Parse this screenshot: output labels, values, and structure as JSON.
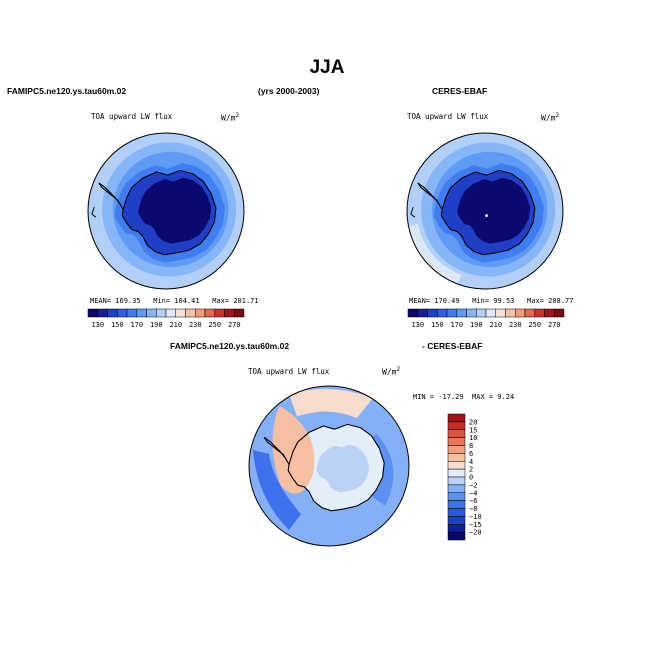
{
  "figure": {
    "title": "JJA",
    "left_case": "FAMIPC5.ne120.ys.tau60m.02",
    "period": "(yrs 2000-2003)",
    "right_case": "CERES-EBAF",
    "diff_case_a": "FAMIPC5.ne120.ys.tau60m.02",
    "diff_case_b": "- CERES-EBAF"
  },
  "chart_data": [
    {
      "type": "heatmap",
      "panel": "model",
      "title": "TOA upward LW flux",
      "units": "W/m",
      "units_exp": "2",
      "projection": "south polar stereographic",
      "stats": {
        "mean": "MEAN= 169.35",
        "min": "Min= 104.41",
        "max": "Max= 201.71"
      },
      "levels": [
        130,
        140,
        150,
        160,
        170,
        180,
        190,
        200,
        210,
        220,
        230,
        240,
        250,
        260,
        270
      ],
      "tick_labels": [
        "130",
        "150",
        "170",
        "190",
        "210",
        "230",
        "250",
        "270"
      ],
      "colors": [
        "#0a0a6e",
        "#1a1a9c",
        "#1e3fc6",
        "#2b5fe0",
        "#3f7ef0",
        "#5f9af5",
        "#86b6f7",
        "#b2d0f7",
        "#dbe8f5",
        "#f7e2d6",
        "#f7c3a6",
        "#f49a78",
        "#e36a4a",
        "#c7352a",
        "#a3131a",
        "#7a0b10"
      ],
      "field": {
        "ocean_outer": 190,
        "ocean_mid": 180,
        "ocean_inner": 170,
        "coast": 160,
        "interior": 140,
        "plateau": 120,
        "outer_ring_value": 200
      }
    },
    {
      "type": "heatmap",
      "panel": "obs",
      "title": "TOA upward LW flux",
      "units": "W/m",
      "units_exp": "2",
      "projection": "south polar stereographic",
      "stats": {
        "mean": "MEAN= 170.49",
        "min": "Min=  99.53",
        "max": "Max= 208.77"
      },
      "levels": [
        130,
        140,
        150,
        160,
        170,
        180,
        190,
        200,
        210,
        220,
        230,
        240,
        250,
        260,
        270
      ],
      "tick_labels": [
        "130",
        "150",
        "170",
        "190",
        "210",
        "230",
        "250",
        "270"
      ],
      "colors": [
        "#0a0a6e",
        "#1a1a9c",
        "#1e3fc6",
        "#2b5fe0",
        "#3f7ef0",
        "#5f9af5",
        "#86b6f7",
        "#b2d0f7",
        "#dbe8f5",
        "#f7e2d6",
        "#f7c3a6",
        "#f49a78",
        "#e36a4a",
        "#c7352a",
        "#a3131a",
        "#7a0b10"
      ],
      "field": {
        "ocean_outer": 190,
        "ocean_mid": 180,
        "ocean_inner": 170,
        "coast": 160,
        "interior": 140,
        "plateau": 120,
        "outer_ring_value": 205
      }
    },
    {
      "type": "heatmap",
      "panel": "difference",
      "title": "TOA upward LW flux",
      "units": "W/m",
      "units_exp": "2",
      "projection": "south polar stereographic",
      "stats": {
        "min": "MIN = -17.29",
        "max": "MAX =   9.24"
      },
      "levels": [
        -20,
        -15,
        -10,
        -8,
        -6,
        -4,
        -2,
        0,
        2,
        4,
        6,
        8,
        10,
        15,
        20
      ],
      "tick_labels": [
        "20",
        "15",
        "10",
        "8",
        "6",
        "4",
        "2",
        "0",
        "−2",
        "−4",
        "−6",
        "−8",
        "−10",
        "−15",
        "−20"
      ],
      "colors": [
        "#08086a",
        "#0c1f9a",
        "#1d3ec8",
        "#2a58e0",
        "#3d72ec",
        "#5c90f2",
        "#86b0f5",
        "#b9d2f6",
        "#e4eef8",
        "#f8dccd",
        "#f6bfa2",
        "#f39d7b",
        "#ec7754",
        "#e0513a",
        "#c92c25",
        "#a3121a"
      ],
      "field": {
        "ocean": -4,
        "ocean_patch": -8,
        "pacific": 2,
        "peninsula": 4,
        "east_coast": -6,
        "interior": 0,
        "plateau": -2
      }
    }
  ]
}
